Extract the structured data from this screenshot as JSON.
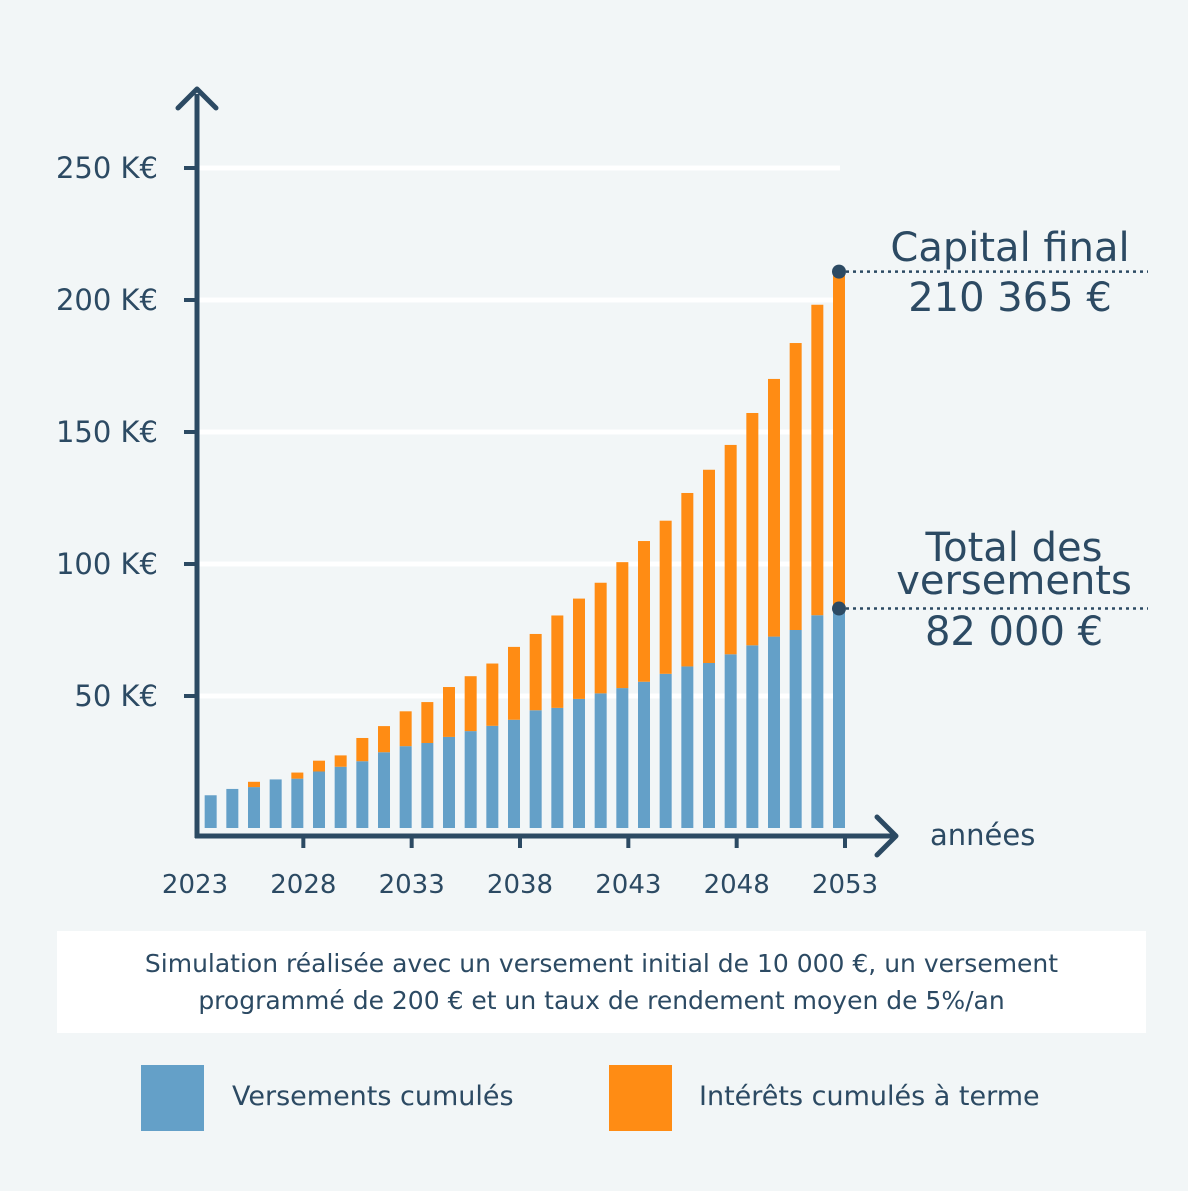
{
  "chart_data": {
    "type": "bar",
    "stacked": true,
    "x": [
      2024,
      2025,
      2026,
      2027,
      2028,
      2029,
      2030,
      2031,
      2032,
      2033,
      2034,
      2035,
      2036,
      2037,
      2038,
      2039,
      2040,
      2041,
      2042,
      2043,
      2044,
      2045,
      2046,
      2047,
      2048,
      2049,
      2050,
      2051,
      2052,
      2053
    ],
    "series": [
      {
        "name": "Versements cumulés",
        "color": "#64a0c8",
        "values": [
          12400,
          14800,
          15500,
          18400,
          18700,
          21400,
          23200,
          25300,
          28700,
          31000,
          32200,
          34500,
          36700,
          38700,
          41000,
          44600,
          45500,
          48900,
          51000,
          53000,
          55400,
          58400,
          61200,
          62500,
          65800,
          69200,
          72500,
          75000,
          80600,
          82000
        ]
      },
      {
        "name": "Intérêts cumulés à terme",
        "color": "#ff8c14",
        "values": [
          0,
          0,
          2000,
          0,
          2300,
          4100,
          4300,
          8800,
          9900,
          13200,
          15500,
          18900,
          20800,
          23600,
          27600,
          28900,
          35000,
          38000,
          41900,
          47700,
          53300,
          58000,
          65700,
          73200,
          79300,
          88000,
          97600,
          108700,
          117600,
          128365
        ]
      }
    ],
    "yticks": [
      "50 K€",
      "100 K€",
      "150 K€",
      "200 K€",
      "250 K€"
    ],
    "ytick_values": [
      50000,
      100000,
      150000,
      200000,
      250000
    ],
    "xticks": [
      "2023",
      "2028",
      "2033",
      "2038",
      "2043",
      "2048",
      "2053"
    ],
    "xtick_values": [
      2023,
      2028,
      2033,
      2038,
      2043,
      2048,
      2053
    ],
    "xlabel": "années",
    "ylim": [
      0,
      250000
    ],
    "xlim": [
      2023,
      2053
    ],
    "grid": true,
    "legend_position": "bottom",
    "annotations": [
      {
        "label_lines": [
          "Capital final",
          "210 365 €"
        ],
        "value": 210365
      },
      {
        "label_lines": [
          "Total des",
          "versements",
          "82 000 €"
        ],
        "value": 82000
      }
    ]
  },
  "note": {
    "line1": "Simulation réalisée avec un versement initial de 10 000 €, un versement",
    "line2": "programmé de 200 € et un taux de rendement moyen de 5%/an"
  },
  "legend": [
    {
      "label": "Versements cumulés",
      "color": "#64a0c8"
    },
    {
      "label": "Intérêts cumulés à terme",
      "color": "#ff8c14"
    }
  ],
  "colors": {
    "axis": "#2c4a63",
    "grid": "#ffffff",
    "background": "#f2f6f7"
  }
}
